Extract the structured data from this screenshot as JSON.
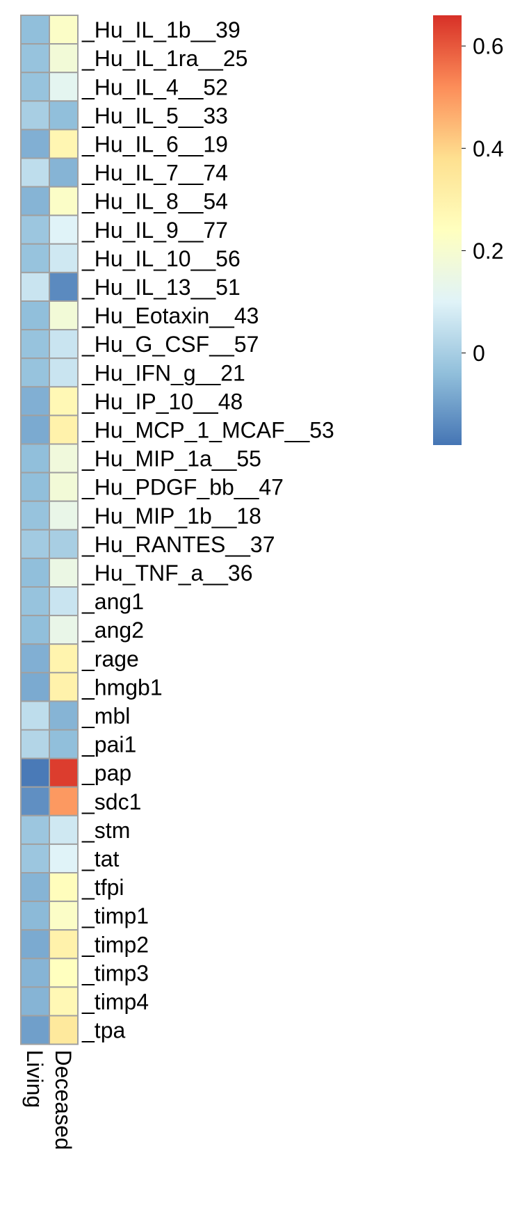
{
  "chart_data": {
    "type": "heatmap",
    "columns": [
      "Living",
      "Deceased"
    ],
    "rows": [
      {
        "label": "_Hu_IL_1b__39",
        "values": [
          -0.04,
          0.22
        ]
      },
      {
        "label": "_Hu_IL_1ra__25",
        "values": [
          -0.03,
          0.18
        ]
      },
      {
        "label": "_Hu_IL_4__52",
        "values": [
          -0.03,
          0.12
        ]
      },
      {
        "label": "_Hu_IL_5__33",
        "values": [
          0.0,
          -0.04
        ]
      },
      {
        "label": "_Hu_IL_6__19",
        "values": [
          -0.07,
          0.28
        ]
      },
      {
        "label": "_Hu_IL_7__74",
        "values": [
          0.04,
          -0.06
        ]
      },
      {
        "label": "_Hu_IL_8__54",
        "values": [
          -0.06,
          0.22
        ]
      },
      {
        "label": "_Hu_IL_9__77",
        "values": [
          -0.02,
          0.1
        ]
      },
      {
        "label": "_Hu_IL_10__56",
        "values": [
          -0.03,
          0.07
        ]
      },
      {
        "label": "_Hu_IL_13__51",
        "values": [
          0.06,
          -0.14
        ]
      },
      {
        "label": "_Hu_Eotaxin__43",
        "values": [
          -0.04,
          0.18
        ]
      },
      {
        "label": "_Hu_G_CSF__57",
        "values": [
          -0.03,
          0.06
        ]
      },
      {
        "label": "_Hu_IFN_g__21",
        "values": [
          -0.03,
          0.06
        ]
      },
      {
        "label": "_Hu_IP_10__48",
        "values": [
          -0.07,
          0.27
        ]
      },
      {
        "label": "_Hu_MCP_1_MCAF__53",
        "values": [
          -0.08,
          0.3
        ]
      },
      {
        "label": "_Hu_MIP_1a__55",
        "values": [
          -0.04,
          0.17
        ]
      },
      {
        "label": "_Hu_PDGF_bb__47",
        "values": [
          -0.04,
          0.18
        ]
      },
      {
        "label": "_Hu_MIP_1b__18",
        "values": [
          -0.03,
          0.14
        ]
      },
      {
        "label": "_Hu_RANTES__37",
        "values": [
          -0.01,
          0.0
        ]
      },
      {
        "label": "_Hu_TNF_a__36",
        "values": [
          -0.04,
          0.15
        ]
      },
      {
        "label": "_ang1",
        "values": [
          -0.03,
          0.06
        ]
      },
      {
        "label": "_ang2",
        "values": [
          -0.04,
          0.14
        ]
      },
      {
        "label": "_rage",
        "values": [
          -0.07,
          0.29
        ]
      },
      {
        "label": "_hmgb1",
        "values": [
          -0.08,
          0.3
        ]
      },
      {
        "label": "_mbl",
        "values": [
          0.04,
          -0.06
        ]
      },
      {
        "label": "_pai1",
        "values": [
          0.02,
          -0.04
        ]
      },
      {
        "label": "_pap",
        "values": [
          -0.17,
          0.64
        ]
      },
      {
        "label": "_sdc1",
        "values": [
          -0.13,
          0.5
        ]
      },
      {
        "label": "_stm",
        "values": [
          -0.02,
          0.07
        ]
      },
      {
        "label": "_tat",
        "values": [
          -0.02,
          0.1
        ]
      },
      {
        "label": "_tfpi",
        "values": [
          -0.06,
          0.25
        ]
      },
      {
        "label": "_timp1",
        "values": [
          -0.05,
          0.22
        ]
      },
      {
        "label": "_timp2",
        "values": [
          -0.08,
          0.3
        ]
      },
      {
        "label": "_timp3",
        "values": [
          -0.06,
          0.24
        ]
      },
      {
        "label": "_timp4",
        "values": [
          -0.06,
          0.27
        ]
      },
      {
        "label": "_tpa",
        "values": [
          -0.1,
          0.34
        ]
      }
    ],
    "color_scale": {
      "min": -0.18,
      "max": 0.66,
      "stops": [
        "#4575B4",
        "#91BFDB",
        "#E0F3F8",
        "#FFFFBF",
        "#FEE090",
        "#FC8D59",
        "#D73027"
      ]
    },
    "legend": {
      "ticks": [
        "0",
        "0.2",
        "0.4",
        "0.6"
      ],
      "tick_values": [
        0,
        0.2,
        0.4,
        0.6
      ],
      "placement": "top-right"
    },
    "grid": true,
    "cell_border_color": "#A0A0A0"
  }
}
